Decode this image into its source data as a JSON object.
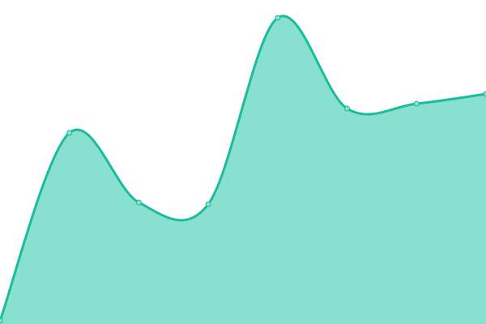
{
  "chart_data": {
    "type": "area",
    "title": "",
    "xlabel": "",
    "ylabel": "",
    "x": [
      0,
      1,
      2,
      3,
      4,
      5,
      6,
      7
    ],
    "series": [
      {
        "values": [
          1,
          59,
          37.5,
          37,
          94.5,
          66.5,
          68,
          71
        ]
      }
    ],
    "ylim": [
      0,
      100
    ],
    "grid": false,
    "axes_visible": false,
    "curve": "smooth",
    "colors": {
      "line": "#1abc9c",
      "fill": "#88e0cf",
      "point_fill": "#88e0cf"
    }
  }
}
